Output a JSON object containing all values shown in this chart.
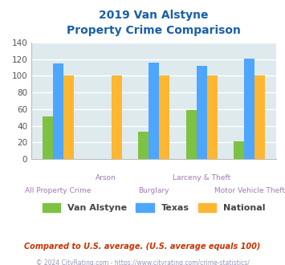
{
  "title_line1": "2019 Van Alstyne",
  "title_line2": "Property Crime Comparison",
  "categories": [
    "All Property Crime",
    "Arson",
    "Burglary",
    "Larceny & Theft",
    "Motor Vehicle Theft"
  ],
  "series": {
    "Van Alstyne": [
      51,
      0,
      33,
      59,
      21
    ],
    "Texas": [
      115,
      0,
      116,
      112,
      121
    ],
    "National": [
      100,
      100,
      100,
      100,
      100
    ]
  },
  "colors": {
    "Van Alstyne": "#7dc242",
    "Texas": "#4da6ff",
    "National": "#ffb732"
  },
  "ylim": [
    0,
    140
  ],
  "yticks": [
    0,
    20,
    40,
    60,
    80,
    100,
    120,
    140
  ],
  "grid_color": "#ffffff",
  "plot_bg": "#deeaee",
  "title_color": "#1a5fa8",
  "xlabel_color": "#9e7bb5",
  "legend_label_color": "#444444",
  "footnote1": "Compared to U.S. average. (U.S. average equals 100)",
  "footnote2": "© 2024 CityRating.com - https://www.cityrating.com/crime-statistics/",
  "footnote1_color": "#cc3300",
  "footnote2_color": "#9999bb",
  "stagger_up": [
    1,
    3
  ],
  "stagger_dn": [
    0,
    2,
    4
  ]
}
